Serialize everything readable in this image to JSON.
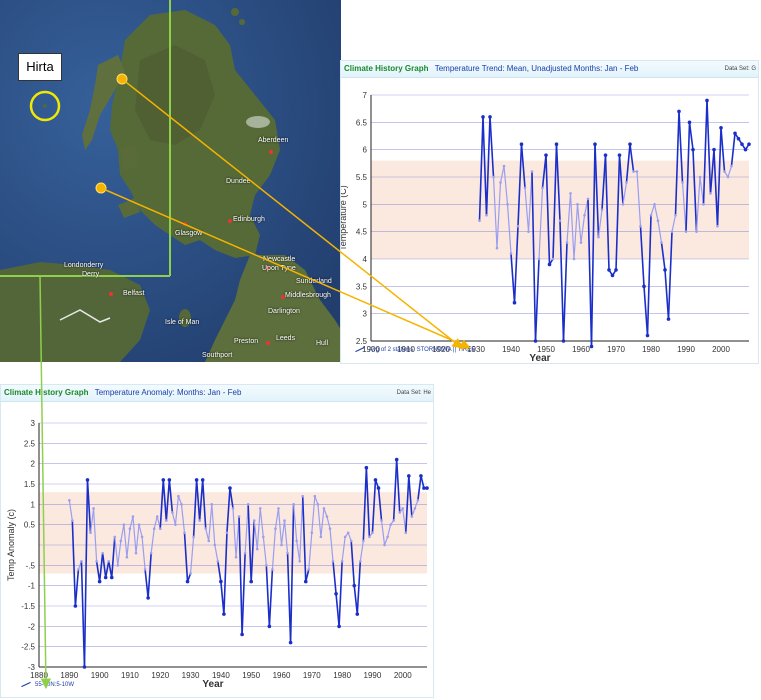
{
  "map": {
    "callout": "Hirta",
    "places": [
      {
        "key": "aberdeen",
        "name": "Aberdeen"
      },
      {
        "key": "dundee",
        "name": "Dundee"
      },
      {
        "key": "edinburgh",
        "name": "Edinburgh"
      },
      {
        "key": "glasgow",
        "name": "Glasgow"
      },
      {
        "key": "londonderry",
        "name": "Londonderry"
      },
      {
        "key": "derry",
        "name": "Derry"
      },
      {
        "key": "belfast",
        "name": "Belfast"
      },
      {
        "key": "newcastle",
        "name": "Newcastle"
      },
      {
        "key": "upontyne",
        "name": "Upon Tyne"
      },
      {
        "key": "sunderland",
        "name": "Sunderland"
      },
      {
        "key": "middlesbrough",
        "name": "Middlesbrough"
      },
      {
        "key": "darlington",
        "name": "Darlington"
      },
      {
        "key": "isleofman",
        "name": "Isle of Man"
      },
      {
        "key": "preston",
        "name": "Preston"
      },
      {
        "key": "leeds",
        "name": "Leeds"
      },
      {
        "key": "southport",
        "name": "Southport"
      },
      {
        "key": "hull",
        "name": "Hull"
      }
    ],
    "colors": {
      "sea": "#2d4f86",
      "land": "#55693a",
      "callout_ring": "#f0e800",
      "station_marker": "#f5b400",
      "grid_line": "#8fd04b"
    }
  },
  "panels": {
    "trend": {
      "title": "Climate History Graph",
      "subtitle": "Temperature Trend: Mean, Unadjusted Months: Jan - Feb",
      "dataset": "Data Set: G",
      "legend": "Avg of 2 stations: STORNOWA || TIREE"
    },
    "anomaly": {
      "title": "Climate History Graph",
      "subtitle": "Temperature Anomaly: Months: Jan - Feb",
      "dataset": "Data Set: He",
      "legend": "55-60N:5-10W"
    }
  },
  "chart_data": [
    {
      "type": "line",
      "title": "Temperature Trend: Mean, Unadjusted Months: Jan - Feb",
      "xlabel": "Year",
      "ylabel": "Temperature (C)",
      "xlim": [
        1900,
        2008
      ],
      "ylim": [
        2.5,
        7
      ],
      "xticks": [
        "1900",
        "1910",
        "1920",
        "1930",
        "1940",
        "1950",
        "1960",
        "1970",
        "1980",
        "1990",
        "2000"
      ],
      "yticks": [
        "2.5",
        "3",
        "3.5",
        "4",
        "4.5",
        "5",
        "5.5",
        "6",
        "6.5",
        "7"
      ],
      "band": [
        4,
        5.8
      ],
      "grid": true,
      "legend_position": "bottom-left",
      "colors": {
        "light": "#9a9df0",
        "dark": "#1b2fc8",
        "band": "#fbe9df"
      },
      "x": [
        1931,
        1932,
        1933,
        1934,
        1935,
        1936,
        1937,
        1938,
        1939,
        1940,
        1941,
        1942,
        1943,
        1944,
        1945,
        1946,
        1947,
        1948,
        1949,
        1950,
        1951,
        1952,
        1953,
        1954,
        1955,
        1956,
        1957,
        1958,
        1959,
        1960,
        1961,
        1962,
        1963,
        1964,
        1965,
        1966,
        1967,
        1968,
        1969,
        1970,
        1971,
        1972,
        1973,
        1974,
        1975,
        1976,
        1977,
        1978,
        1979,
        1980,
        1981,
        1982,
        1983,
        1984,
        1985,
        1986,
        1987,
        1988,
        1989,
        1990,
        1991,
        1992,
        1993,
        1994,
        1995,
        1996,
        1997,
        1998,
        1999,
        2000,
        2001,
        2002,
        2003,
        2004,
        2005,
        2006,
        2007,
        2008
      ],
      "series": [
        {
          "values": [
            4.7,
            6.6,
            4.8,
            6.6,
            5.5,
            4.2,
            5.4,
            5.7,
            5.0,
            4.1,
            3.2,
            4.6,
            6.1,
            5.3,
            4.5,
            5.6,
            2.5,
            4.0,
            5.3,
            5.9,
            3.9,
            4.0,
            6.1,
            4.7,
            2.5,
            4.3,
            5.2,
            4.0,
            5.0,
            4.3,
            4.8,
            5.1,
            2.4,
            6.1,
            4.4,
            4.9,
            5.9,
            3.8,
            3.7,
            3.8,
            5.9,
            5.0,
            5.4,
            6.1,
            5.6,
            5.6,
            4.6,
            3.5,
            2.6,
            4.8,
            5.0,
            4.7,
            4.3,
            3.8,
            2.9,
            4.5,
            4.8,
            6.7,
            5.4,
            4.5,
            6.5,
            6.0,
            4.5,
            5.5,
            5.0,
            6.9,
            5.2,
            6.0,
            4.6,
            6.4,
            5.6,
            5.5,
            5.7,
            6.3,
            6.2,
            6.1,
            6.0,
            6.1
          ]
        }
      ]
    },
    {
      "type": "line",
      "title": "Temperature Anomaly: Months: Jan - Feb",
      "xlabel": "Year",
      "ylabel": "Temp Anomaly (c)",
      "xlim": [
        1880,
        2008
      ],
      "ylim": [
        -3,
        3
      ],
      "xticks": [
        "1880",
        "1890",
        "1900",
        "1910",
        "1920",
        "1930",
        "1940",
        "1950",
        "1960",
        "1970",
        "1980",
        "1990",
        "2000"
      ],
      "yticks": [
        "-3",
        "-2.5",
        "-2",
        "-1.5",
        "-1",
        "-.5",
        "",
        "0.5",
        "1",
        "1.5",
        "2",
        "2.5",
        "3"
      ],
      "band": [
        -0.7,
        1.3
      ],
      "grid": true,
      "legend_position": "bottom-left",
      "colors": {
        "light": "#9a9df0",
        "dark": "#1b2fc8",
        "band": "#fbe9df"
      },
      "x": [
        1890,
        1891,
        1892,
        1893,
        1894,
        1895,
        1896,
        1897,
        1898,
        1899,
        1900,
        1901,
        1902,
        1903,
        1904,
        1905,
        1906,
        1907,
        1908,
        1909,
        1910,
        1911,
        1912,
        1913,
        1914,
        1915,
        1916,
        1917,
        1918,
        1919,
        1920,
        1921,
        1922,
        1923,
        1924,
        1925,
        1926,
        1927,
        1928,
        1929,
        1930,
        1931,
        1932,
        1933,
        1934,
        1935,
        1936,
        1937,
        1938,
        1939,
        1940,
        1941,
        1942,
        1943,
        1944,
        1945,
        1946,
        1947,
        1948,
        1949,
        1950,
        1951,
        1952,
        1953,
        1954,
        1955,
        1956,
        1957,
        1958,
        1959,
        1960,
        1961,
        1962,
        1963,
        1964,
        1965,
        1966,
        1967,
        1968,
        1969,
        1970,
        1971,
        1972,
        1973,
        1974,
        1975,
        1976,
        1977,
        1978,
        1979,
        1980,
        1981,
        1982,
        1983,
        1984,
        1985,
        1986,
        1987,
        1988,
        1989,
        1990,
        1991,
        1992,
        1993,
        1994,
        1995,
        1996,
        1997,
        1998,
        1999,
        2000,
        2001,
        2002,
        2003,
        2004,
        2005,
        2006,
        2007,
        2008
      ],
      "series": [
        {
          "values": [
            1.1,
            0.6,
            -1.5,
            -0.6,
            -0.4,
            -3.0,
            1.6,
            0.3,
            0.9,
            -0.4,
            -0.9,
            -0.2,
            -0.8,
            -0.4,
            -0.8,
            0.2,
            -0.5,
            0.1,
            0.5,
            -0.3,
            0.4,
            0.7,
            -0.2,
            0.5,
            0.2,
            -0.6,
            -1.3,
            -0.2,
            0.4,
            0.7,
            0.4,
            1.6,
            0.6,
            1.6,
            0.8,
            0.5,
            1.2,
            1.0,
            0.3,
            -0.9,
            -0.7,
            0.2,
            1.6,
            0.6,
            1.6,
            0.4,
            0.1,
            1.0,
            0.0,
            -0.4,
            -0.9,
            -1.7,
            0.3,
            1.4,
            0.9,
            -0.3,
            0.7,
            -2.2,
            -0.2,
            1.0,
            -0.9,
            0.6,
            -0.1,
            0.9,
            0.2,
            -0.5,
            -2.0,
            -0.6,
            0.4,
            0.9,
            0.0,
            0.6,
            -0.2,
            -2.4,
            1.0,
            0.1,
            -0.4,
            1.2,
            -0.9,
            -0.6,
            0.3,
            1.2,
            1.0,
            0.2,
            0.9,
            0.7,
            0.4,
            -0.4,
            -1.2,
            -2.0,
            -0.4,
            0.2,
            0.3,
            0.1,
            -1.0,
            -1.7,
            -0.4,
            0.1,
            1.9,
            0.2,
            0.3,
            1.6,
            1.4,
            0.6,
            0.0,
            0.2,
            0.5,
            0.6,
            2.1,
            0.8,
            0.9,
            0.3,
            1.7,
            0.7,
            0.9,
            1.1,
            1.7,
            1.4,
            1.4
          ]
        }
      ]
    }
  ]
}
